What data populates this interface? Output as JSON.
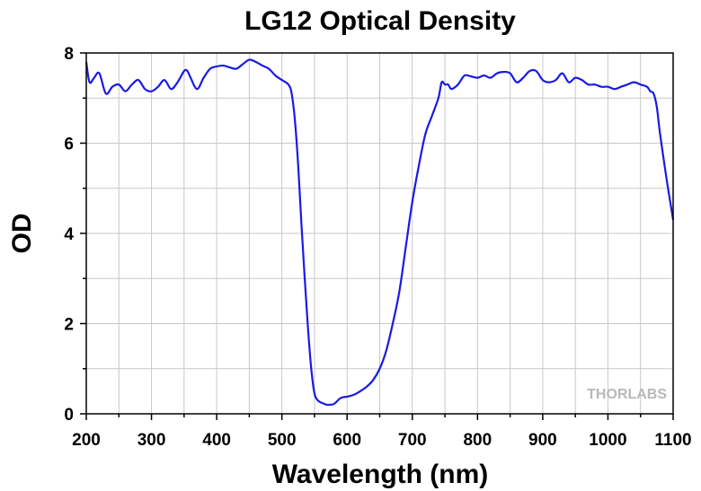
{
  "chart_data": {
    "type": "line",
    "title": "LG12 Optical Density",
    "xlabel": "Wavelength (nm)",
    "ylabel": "OD",
    "xlim": [
      200,
      1100
    ],
    "ylim": [
      0,
      8
    ],
    "xticks": [
      200,
      300,
      400,
      500,
      600,
      700,
      800,
      900,
      1000,
      1100
    ],
    "yticks": [
      0,
      2,
      4,
      6,
      8
    ],
    "grid": true,
    "line_color": "#1a1ae6",
    "series": [
      {
        "x": [
          200,
          205,
          212,
          220,
          230,
          240,
          250,
          260,
          270,
          280,
          290,
          300,
          310,
          320,
          330,
          340,
          350,
          355,
          360,
          370,
          380,
          390,
          400,
          410,
          420,
          430,
          440,
          450,
          460,
          470,
          480,
          490,
          500,
          510,
          515,
          520,
          525,
          530,
          535,
          540,
          545,
          550,
          555,
          560,
          565,
          570,
          580,
          590,
          600,
          610,
          620,
          630,
          640,
          650,
          660,
          670,
          680,
          690,
          700,
          710,
          720,
          730,
          740,
          745,
          750,
          755,
          760,
          770,
          780,
          790,
          800,
          810,
          820,
          830,
          840,
          850,
          860,
          870,
          880,
          890,
          900,
          910,
          920,
          930,
          940,
          950,
          960,
          970,
          980,
          990,
          1000,
          1010,
          1020,
          1030,
          1040,
          1050,
          1060,
          1065,
          1070,
          1075,
          1080,
          1090,
          1100
        ],
        "y": [
          7.8,
          7.35,
          7.45,
          7.55,
          7.1,
          7.25,
          7.3,
          7.15,
          7.3,
          7.4,
          7.2,
          7.15,
          7.25,
          7.4,
          7.2,
          7.35,
          7.6,
          7.6,
          7.45,
          7.2,
          7.45,
          7.65,
          7.7,
          7.72,
          7.68,
          7.65,
          7.75,
          7.85,
          7.8,
          7.72,
          7.65,
          7.5,
          7.4,
          7.3,
          7.1,
          6.5,
          5.5,
          4.2,
          3.0,
          1.9,
          1.0,
          0.45,
          0.3,
          0.25,
          0.22,
          0.2,
          0.22,
          0.35,
          0.38,
          0.42,
          0.5,
          0.6,
          0.75,
          1.0,
          1.4,
          2.0,
          2.7,
          3.7,
          4.7,
          5.5,
          6.2,
          6.6,
          7.0,
          7.35,
          7.3,
          7.3,
          7.2,
          7.3,
          7.5,
          7.48,
          7.45,
          7.5,
          7.45,
          7.55,
          7.58,
          7.55,
          7.35,
          7.45,
          7.6,
          7.6,
          7.4,
          7.35,
          7.4,
          7.55,
          7.35,
          7.45,
          7.4,
          7.3,
          7.3,
          7.25,
          7.25,
          7.2,
          7.25,
          7.3,
          7.35,
          7.3,
          7.25,
          7.15,
          7.1,
          6.8,
          6.2,
          5.2,
          4.3
        ]
      }
    ]
  },
  "watermark": {
    "text": "THORLABS"
  }
}
